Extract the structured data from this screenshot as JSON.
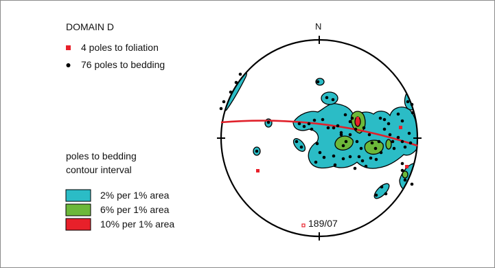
{
  "title": "DOMAIN D",
  "north_label": "N",
  "legend_points": [
    {
      "label": "4 poles to foliation",
      "symbol": "square",
      "color": "#e8202a"
    },
    {
      "label": "76 poles to bedding",
      "symbol": "dot",
      "color": "#000000"
    }
  ],
  "contour_heading": [
    "poles to bedding",
    "contour interval"
  ],
  "contour_legend": [
    {
      "label": "2% per 1% area",
      "color": "#2bbcc6"
    },
    {
      "label": "6% per 1% area",
      "color": "#6cb83a"
    },
    {
      "label": "10% per 1% area",
      "color": "#e8202a"
    }
  ],
  "plane_label": "189/07",
  "colors": {
    "great_circle": "#e0202a",
    "foliation_pole": "#e8202a",
    "bedding_pole": "#000000",
    "outline": "#000000"
  }
}
